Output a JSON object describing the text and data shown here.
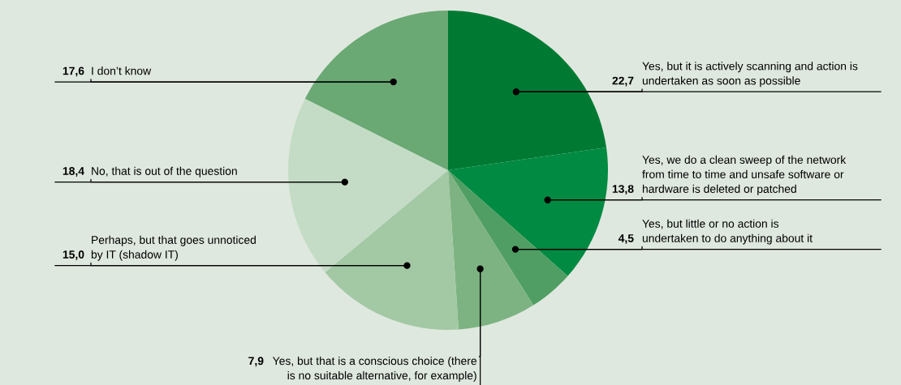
{
  "chart_data": {
    "type": "pie",
    "categories": [
      "Yes, but it is actively scanning and action is\nundertaken as soon as possible",
      "Yes, we do a clean sweep of the network\nfrom time to time and unsafe software or\nhardware is deleted or patched",
      "Yes, but little or no action is\nundertaken to do anything about it",
      "Yes, but that is a conscious choice (there\nis no suitable alternative, for example)",
      "Perhaps, but that goes unnoticed\nby IT (shadow IT)",
      "No, that is out of the question",
      "I don’t know"
    ],
    "values": [
      22.7,
      13.8,
      4.5,
      7.9,
      15.0,
      18.4,
      17.6
    ],
    "value_labels": [
      "22,7",
      "13,8",
      "4,5",
      "7,9",
      "15,0",
      "18,4",
      "17,6"
    ],
    "colors": [
      "#007a33",
      "#008a42",
      "#509e63",
      "#7db382",
      "#a3c8a4",
      "#c4dcc5",
      "#6aa874"
    ],
    "legend": false
  }
}
